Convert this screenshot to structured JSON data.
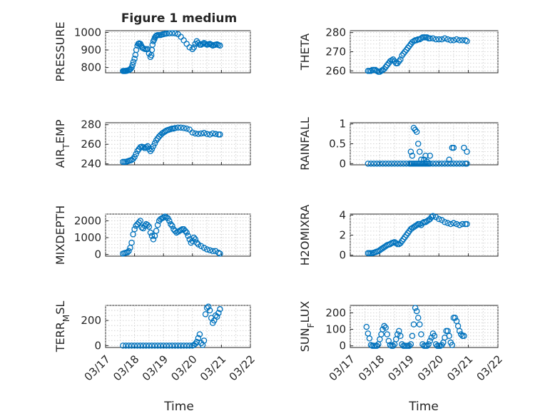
{
  "figure": {
    "title": "Figure 1 medium",
    "x_label": "Time",
    "x_ticks": [
      "03/17",
      "03/18",
      "03/19",
      "03/20",
      "03/21",
      "03/22"
    ],
    "marker": "open-circle",
    "marker_color": "#0072BD",
    "grid": "dotted"
  },
  "chart_data": [
    {
      "type": "scatter",
      "name": "pressure",
      "ylabel": "PRESSURE",
      "ylim": [
        770,
        1010
      ],
      "yticks": [
        "800",
        "900",
        "1000"
      ],
      "ytick_values": [
        800,
        900,
        1000
      ],
      "xlim": [
        0,
        5
      ],
      "x": [
        0.6,
        0.63,
        0.66,
        0.69,
        0.72,
        0.75,
        0.8,
        0.83,
        0.86,
        0.9,
        0.93,
        0.96,
        1.0,
        1.03,
        1.06,
        1.1,
        1.13,
        1.16,
        1.2,
        1.23,
        1.26,
        1.3,
        1.35,
        1.4,
        1.45,
        1.5,
        1.55,
        1.58,
        1.6,
        1.62,
        1.65,
        1.68,
        1.7,
        1.73,
        1.76,
        1.8,
        1.85,
        1.9,
        1.95,
        2.0,
        2.05,
        2.1,
        2.2,
        2.3,
        2.4,
        2.5,
        2.6,
        2.7,
        2.8,
        2.9,
        3.0,
        3.05,
        3.1,
        3.15,
        3.2,
        3.25,
        3.3,
        3.35,
        3.4,
        3.45,
        3.5,
        3.55,
        3.6,
        3.65,
        3.7,
        3.75,
        3.8,
        3.85,
        3.9,
        3.95
      ],
      "y": [
        780,
        780,
        780,
        780,
        781,
        782,
        785,
        788,
        792,
        800,
        815,
        832,
        850,
        872,
        900,
        925,
        935,
        938,
        935,
        925,
        915,
        910,
        906,
        905,
        905,
        880,
        860,
        870,
        900,
        930,
        950,
        960,
        970,
        978,
        982,
        985,
        985,
        985,
        988,
        990,
        992,
        993,
        995,
        996,
        995,
        990,
        975,
        955,
        935,
        915,
        905,
        915,
        935,
        950,
        940,
        930,
        930,
        935,
        940,
        935,
        930,
        932,
        935,
        930,
        925,
        928,
        930,
        932,
        928,
        925
      ]
    },
    {
      "type": "scatter",
      "name": "theta",
      "ylabel": "THETA",
      "ylim": [
        259,
        281
      ],
      "yticks": [
        "260",
        "270",
        "280"
      ],
      "ytick_values": [
        260,
        270,
        280
      ],
      "xlim": [
        0,
        5
      ],
      "x": [
        0.6,
        0.65,
        0.7,
        0.75,
        0.8,
        0.85,
        0.9,
        0.95,
        1.0,
        1.05,
        1.1,
        1.15,
        1.2,
        1.25,
        1.3,
        1.35,
        1.4,
        1.45,
        1.5,
        1.55,
        1.6,
        1.65,
        1.7,
        1.75,
        1.8,
        1.85,
        1.9,
        1.95,
        2.0,
        2.05,
        2.1,
        2.15,
        2.2,
        2.25,
        2.3,
        2.35,
        2.4,
        2.45,
        2.5,
        2.55,
        2.6,
        2.65,
        2.7,
        2.8,
        2.9,
        3.0,
        3.1,
        3.2,
        3.3,
        3.4,
        3.5,
        3.6,
        3.7,
        3.8,
        3.9,
        3.95
      ],
      "y": [
        260,
        260,
        260,
        260.5,
        260.5,
        260.5,
        260,
        259.5,
        259.5,
        260,
        260.5,
        261,
        262,
        263,
        264,
        265,
        265.5,
        266,
        265,
        264,
        264,
        265,
        266,
        268,
        269,
        270,
        271,
        272,
        273,
        274,
        275,
        275.5,
        276,
        276,
        276.5,
        276.5,
        277,
        277.5,
        277.5,
        277.5,
        277.5,
        277,
        277,
        277,
        276.5,
        276.5,
        276.5,
        277,
        276.5,
        276,
        276,
        276.5,
        276,
        276,
        276,
        275.5
      ]
    },
    {
      "type": "scatter",
      "name": "air_temp",
      "ylabel": "AIR_TEMP",
      "ylim": [
        239,
        282
      ],
      "yticks": [
        "240",
        "260",
        "280"
      ],
      "ytick_values": [
        240,
        260,
        280
      ],
      "xlim": [
        0,
        5
      ],
      "x": [
        0.6,
        0.65,
        0.7,
        0.75,
        0.8,
        0.85,
        0.9,
        0.95,
        1.0,
        1.05,
        1.1,
        1.15,
        1.2,
        1.25,
        1.3,
        1.35,
        1.4,
        1.45,
        1.5,
        1.55,
        1.6,
        1.65,
        1.7,
        1.75,
        1.8,
        1.85,
        1.9,
        1.95,
        2.0,
        2.05,
        2.1,
        2.15,
        2.2,
        2.25,
        2.3,
        2.35,
        2.4,
        2.5,
        2.6,
        2.7,
        2.8,
        2.9,
        3.0,
        3.1,
        3.2,
        3.3,
        3.4,
        3.5,
        3.6,
        3.7,
        3.8,
        3.9,
        3.95
      ],
      "y": [
        242,
        242,
        242,
        242.5,
        243,
        243.5,
        244,
        245,
        247,
        250,
        253,
        255,
        257,
        257.5,
        257,
        256,
        257,
        258,
        255,
        253,
        255,
        258,
        261,
        264,
        266,
        268,
        269.5,
        271,
        272,
        273,
        274,
        274.5,
        275,
        275.5,
        276,
        276,
        276.5,
        277,
        277,
        276.5,
        276,
        275,
        272,
        271,
        270.5,
        271,
        271.5,
        270.5,
        270,
        271,
        270.5,
        270,
        270
      ]
    },
    {
      "type": "scatter",
      "name": "rainfall",
      "ylabel": "RAINFALL",
      "ylim": [
        -0.03,
        1.03
      ],
      "yticks": [
        "0",
        "0.5",
        "1"
      ],
      "ytick_values": [
        0,
        0.5,
        1
      ],
      "xlim": [
        0,
        5
      ],
      "x": [
        0.6,
        0.7,
        0.8,
        0.9,
        1.0,
        1.1,
        1.2,
        1.3,
        1.4,
        1.5,
        1.6,
        1.7,
        1.8,
        1.9,
        2.0,
        2.05,
        2.1,
        2.15,
        2.2,
        2.25,
        2.3,
        2.35,
        2.4,
        2.45,
        2.5,
        2.55,
        2.6,
        2.65,
        2.7,
        2.8,
        2.9,
        3.0,
        3.1,
        3.2,
        3.3,
        3.4,
        3.5,
        3.6,
        3.7,
        3.8,
        3.9,
        3.95,
        2.05,
        2.1,
        2.15,
        2.2,
        2.25,
        2.3,
        2.35,
        2.4,
        2.5,
        2.55,
        2.6,
        2.7,
        3.35,
        3.45,
        3.5,
        3.85,
        3.95
      ],
      "y": [
        0,
        0,
        0,
        0,
        0,
        0,
        0,
        0,
        0,
        0,
        0,
        0,
        0,
        0,
        0,
        0,
        0,
        0,
        0,
        0,
        0,
        0,
        0,
        0,
        0,
        0,
        0,
        0,
        0,
        0,
        0,
        0,
        0,
        0,
        0,
        0,
        0,
        0,
        0,
        0,
        0,
        0,
        0.3,
        0.2,
        0.9,
        0.85,
        0.8,
        0.5,
        0.3,
        0.1,
        0.1,
        0.2,
        0.05,
        0.2,
        0.1,
        0.4,
        0.4,
        0.4,
        0.3
      ]
    },
    {
      "type": "scatter",
      "name": "mixdepth",
      "ylabel": "MIXDEPTH",
      "ylim": [
        -100,
        2400
      ],
      "yticks": [
        "0",
        "1000",
        "2000"
      ],
      "ytick_values": [
        0,
        1000,
        2000
      ],
      "xlim": [
        0,
        5
      ],
      "x": [
        0.6,
        0.65,
        0.7,
        0.75,
        0.8,
        0.85,
        0.9,
        0.95,
        1.0,
        1.05,
        1.1,
        1.15,
        1.2,
        1.25,
        1.3,
        1.35,
        1.4,
        1.45,
        1.5,
        1.55,
        1.6,
        1.65,
        1.7,
        1.75,
        1.8,
        1.85,
        1.9,
        1.95,
        2.0,
        2.05,
        2.1,
        2.15,
        2.2,
        2.25,
        2.3,
        2.35,
        2.4,
        2.45,
        2.5,
        2.55,
        2.6,
        2.65,
        2.7,
        2.75,
        2.8,
        2.85,
        2.9,
        2.95,
        3.0,
        3.05,
        3.1,
        3.15,
        3.2,
        3.3,
        3.4,
        3.5,
        3.6,
        3.7,
        3.8,
        3.9,
        3.95
      ],
      "y": [
        50,
        80,
        100,
        120,
        200,
        400,
        700,
        1200,
        1500,
        1700,
        1800,
        1900,
        2000,
        1600,
        1550,
        1700,
        1800,
        1750,
        1650,
        1300,
        1100,
        900,
        1100,
        1400,
        1750,
        2000,
        2100,
        2150,
        2200,
        2250,
        2200,
        2150,
        2000,
        1800,
        1700,
        1500,
        1400,
        1300,
        1350,
        1400,
        1450,
        1500,
        1500,
        1400,
        1300,
        1100,
        900,
        700,
        800,
        1000,
        900,
        700,
        600,
        500,
        400,
        300,
        250,
        200,
        200,
        100,
        50
      ]
    },
    {
      "type": "scatter",
      "name": "h2omixra",
      "ylabel": "H2OMIXRA",
      "ylim": [
        -0.1,
        4.1
      ],
      "yticks": [
        "0",
        "2",
        "4"
      ],
      "ytick_values": [
        0,
        2,
        4
      ],
      "xlim": [
        0,
        5
      ],
      "x": [
        0.6,
        0.65,
        0.7,
        0.75,
        0.8,
        0.85,
        0.9,
        0.95,
        1.0,
        1.05,
        1.1,
        1.15,
        1.2,
        1.25,
        1.3,
        1.35,
        1.4,
        1.45,
        1.5,
        1.55,
        1.6,
        1.65,
        1.7,
        1.75,
        1.8,
        1.85,
        1.9,
        1.95,
        2.0,
        2.05,
        2.1,
        2.15,
        2.2,
        2.25,
        2.3,
        2.35,
        2.4,
        2.45,
        2.5,
        2.55,
        2.6,
        2.65,
        2.7,
        2.75,
        2.8,
        2.9,
        3.0,
        3.1,
        3.2,
        3.3,
        3.4,
        3.5,
        3.6,
        3.7,
        3.8,
        3.9,
        3.95
      ],
      "y": [
        0.2,
        0.2,
        0.2,
        0.2,
        0.25,
        0.3,
        0.35,
        0.4,
        0.5,
        0.6,
        0.7,
        0.8,
        0.9,
        1.0,
        1.05,
        1.1,
        1.2,
        1.25,
        1.3,
        1.2,
        1.1,
        1.1,
        1.2,
        1.4,
        1.6,
        1.8,
        2.0,
        2.2,
        2.4,
        2.6,
        2.7,
        2.8,
        2.9,
        3.0,
        3.1,
        3.1,
        3.0,
        3.2,
        3.3,
        3.3,
        3.4,
        3.5,
        3.6,
        3.8,
        3.9,
        3.8,
        3.6,
        3.5,
        3.3,
        3.2,
        3.1,
        3.2,
        3.1,
        3.0,
        3.1,
        3.1,
        3.1
      ]
    },
    {
      "type": "scatter",
      "name": "terr_msl",
      "ylabel": "TERR_MSL",
      "ylim": [
        -15,
        320
      ],
      "yticks": [
        "0",
        "200"
      ],
      "ytick_values": [
        0,
        200
      ],
      "xlim": [
        0,
        5
      ],
      "x": [
        0.6,
        0.7,
        0.8,
        0.9,
        1.0,
        1.1,
        1.2,
        1.3,
        1.4,
        1.5,
        1.6,
        1.7,
        1.8,
        1.9,
        2.0,
        2.1,
        2.2,
        2.3,
        2.4,
        2.5,
        2.6,
        2.7,
        2.8,
        2.9,
        3.0,
        3.05,
        3.1,
        3.15,
        3.2,
        3.25,
        3.3,
        3.35,
        3.4,
        3.45,
        3.5,
        3.55,
        3.6,
        3.65,
        3.7,
        3.75,
        3.8,
        3.85,
        3.9,
        3.95
      ],
      "y": [
        0,
        0,
        0,
        0,
        0,
        0,
        0,
        0,
        0,
        0,
        0,
        0,
        0,
        0,
        0,
        0,
        0,
        0,
        0,
        0,
        0,
        0,
        0,
        0,
        0,
        5,
        15,
        30,
        60,
        90,
        20,
        5,
        40,
        250,
        300,
        310,
        280,
        220,
        180,
        200,
        240,
        230,
        260,
        290
      ]
    },
    {
      "type": "scatter",
      "name": "sun_flux",
      "ylabel": "SUN_FLUX",
      "ylim": [
        -10,
        245
      ],
      "yticks": [
        "0",
        "100",
        "200"
      ],
      "ytick_values": [
        0,
        100,
        200
      ],
      "xlim": [
        0,
        5
      ],
      "x": [
        0.55,
        0.6,
        0.65,
        0.7,
        0.75,
        0.8,
        0.85,
        0.9,
        0.95,
        1.0,
        1.05,
        1.1,
        1.15,
        1.2,
        1.25,
        1.3,
        1.35,
        1.4,
        1.45,
        1.5,
        1.55,
        1.6,
        1.65,
        1.7,
        1.75,
        1.8,
        1.85,
        1.9,
        1.95,
        2.0,
        2.05,
        2.1,
        2.15,
        2.2,
        2.25,
        2.3,
        2.35,
        2.4,
        2.45,
        2.5,
        2.55,
        2.6,
        2.65,
        2.7,
        2.75,
        2.8,
        2.85,
        2.9,
        2.95,
        3.0,
        3.05,
        3.1,
        3.15,
        3.2,
        3.25,
        3.3,
        3.35,
        3.4,
        3.45,
        3.5,
        3.55,
        3.6,
        3.65,
        3.7,
        3.75,
        3.8,
        3.85
      ],
      "y": [
        115,
        75,
        45,
        5,
        0,
        0,
        0,
        0,
        10,
        40,
        70,
        100,
        120,
        110,
        70,
        30,
        5,
        0,
        0,
        10,
        40,
        70,
        90,
        60,
        10,
        0,
        0,
        0,
        0,
        0,
        10,
        60,
        130,
        230,
        210,
        170,
        130,
        70,
        10,
        0,
        0,
        0,
        10,
        30,
        50,
        75,
        60,
        10,
        0,
        0,
        0,
        5,
        20,
        50,
        90,
        90,
        60,
        20,
        5,
        170,
        170,
        150,
        120,
        90,
        70,
        60,
        60
      ]
    }
  ]
}
